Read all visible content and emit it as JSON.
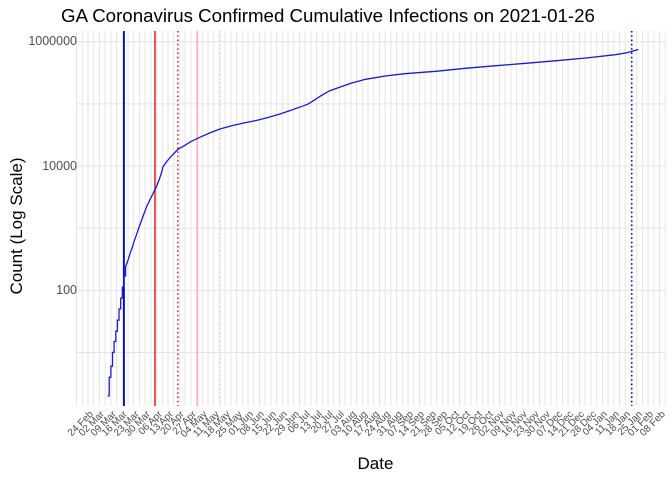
{
  "title": "GA Coronavirus Confirmed Cumulative Infections on 2021-01-26",
  "chart_data": {
    "type": "line",
    "title": "GA Coronavirus Confirmed Cumulative Infections on 2021-01-26",
    "xlabel": "Date",
    "ylabel": "Count (Log Scale)",
    "y_scale": "log10",
    "grid": true,
    "legend": "none",
    "y_ticks": [
      {
        "value": 100,
        "label": "100"
      },
      {
        "value": 10000,
        "label": "10000"
      },
      {
        "value": 1000000,
        "label": "1000000"
      }
    ],
    "y_minor_ticks": [
      10,
      1000,
      100000
    ],
    "ylim_log10": [
      0.12,
      6.17
    ],
    "x_start_date": "2020-02-24",
    "x_tick_interval_days": 7,
    "x_tick_labels": [
      "24 Feb",
      "02 Mar",
      "09 Mar",
      "16 Mar",
      "23 Mar",
      "30 Mar",
      "06 Apr",
      "13 Apr",
      "20 Apr",
      "27 Apr",
      "04 May",
      "11 May",
      "18 May",
      "25 May",
      "01 Jun",
      "08 Jun",
      "15 Jun",
      "22 Jun",
      "29 Jun",
      "06 Jul",
      "13 Jul",
      "20 Jul",
      "27 Jul",
      "03 Aug",
      "10 Aug",
      "17 Aug",
      "24 Aug",
      "31 Aug",
      "07 Sep",
      "14 Sep",
      "21 Sep",
      "28 Sep",
      "05 Oct",
      "12 Oct",
      "19 Oct",
      "26 Oct",
      "02 Nov",
      "09 Nov",
      "16 Nov",
      "23 Nov",
      "30 Nov",
      "07 Dec",
      "14 Dec",
      "21 Dec",
      "28 Dec",
      "04 Jan",
      "11 Jan",
      "18 Jan",
      "25 Jan",
      "01 Feb",
      "08 Feb"
    ],
    "series": [
      {
        "name": "cumulative-confirmed-infections",
        "color": "#1A1ACF",
        "points": [
          [
            "2020-03-07",
            2
          ],
          [
            "2020-03-08",
            2
          ],
          [
            "2020-03-08",
            4
          ],
          [
            "2020-03-09",
            4
          ],
          [
            "2020-03-09",
            6
          ],
          [
            "2020-03-10",
            6
          ],
          [
            "2020-03-10",
            10
          ],
          [
            "2020-03-11",
            10
          ],
          [
            "2020-03-11",
            15
          ],
          [
            "2020-03-12",
            15
          ],
          [
            "2020-03-12",
            22
          ],
          [
            "2020-03-13",
            22
          ],
          [
            "2020-03-13",
            33
          ],
          [
            "2020-03-14",
            33
          ],
          [
            "2020-03-14",
            50
          ],
          [
            "2020-03-15",
            50
          ],
          [
            "2020-03-15",
            75
          ],
          [
            "2020-03-16",
            75
          ],
          [
            "2020-03-16",
            112
          ],
          [
            "2020-03-17",
            112
          ],
          [
            "2020-03-17",
            170
          ],
          [
            "2020-03-18",
            170
          ],
          [
            "2020-03-18",
            240
          ],
          [
            "2020-03-19",
            280
          ],
          [
            "2020-03-20",
            335
          ],
          [
            "2020-03-21",
            413
          ],
          [
            "2020-03-22",
            480
          ],
          [
            "2020-03-23",
            590
          ],
          [
            "2020-03-24",
            700
          ],
          [
            "2020-03-25",
            830
          ],
          [
            "2020-03-26",
            990
          ],
          [
            "2020-03-27",
            1170
          ],
          [
            "2020-03-28",
            1380
          ],
          [
            "2020-03-29",
            1630
          ],
          [
            "2020-03-30",
            1920
          ],
          [
            "2020-03-31",
            2260
          ],
          [
            "2020-04-01",
            2560
          ],
          [
            "2020-04-02",
            2890
          ],
          [
            "2020-04-03",
            3260
          ],
          [
            "2020-04-04",
            3680
          ],
          [
            "2020-04-05",
            4160
          ],
          [
            "2020-04-06",
            4700
          ],
          [
            "2020-04-07",
            5500
          ],
          [
            "2020-04-08",
            6450
          ],
          [
            "2020-04-09",
            7800
          ],
          [
            "2020-04-10",
            9800
          ],
          [
            "2020-04-11",
            10700
          ],
          [
            "2020-04-12",
            11600
          ],
          [
            "2020-04-13",
            12500
          ],
          [
            "2020-04-14",
            13400
          ],
          [
            "2020-04-19",
            18500
          ],
          [
            "2020-04-23",
            21200
          ],
          [
            "2020-04-27",
            24700
          ],
          [
            "2020-05-02",
            28500
          ],
          [
            "2020-05-09",
            34500
          ],
          [
            "2020-05-15",
            39500
          ],
          [
            "2020-05-22",
            44300
          ],
          [
            "2020-05-30",
            49800
          ],
          [
            "2020-06-06",
            54000
          ],
          [
            "2020-06-13",
            60000
          ],
          [
            "2020-06-21",
            69200
          ],
          [
            "2020-06-28",
            79900
          ],
          [
            "2020-07-05",
            93000
          ],
          [
            "2020-07-08",
            100000
          ],
          [
            "2020-07-15",
            132000
          ],
          [
            "2020-07-21",
            163000
          ],
          [
            "2020-08-03",
            214000
          ],
          [
            "2020-08-12",
            248000
          ],
          [
            "2020-08-24",
            281000
          ],
          [
            "2020-09-05",
            306000
          ],
          [
            "2020-09-24",
            334000
          ],
          [
            "2020-10-12",
            373000
          ],
          [
            "2020-10-31",
            411000
          ],
          [
            "2020-11-18",
            449000
          ],
          [
            "2020-12-07",
            495000
          ],
          [
            "2020-12-25",
            547000
          ],
          [
            "2021-01-12",
            618000
          ],
          [
            "2021-01-19",
            662000
          ],
          [
            "2021-01-26",
            749000
          ]
        ]
      }
    ],
    "vlines": [
      {
        "date": "2020-03-17",
        "color": "#0000BF",
        "style": "solid",
        "width": 1.8
      },
      {
        "date": "2020-04-05",
        "color": "#E01111",
        "style": "solid",
        "width": 1.4
      },
      {
        "date": "2020-04-19",
        "color": "#DD1111",
        "style": "dotted",
        "width": 1.4
      },
      {
        "date": "2020-05-01",
        "color": "#FFB0BE",
        "style": "solid",
        "width": 1.6
      },
      {
        "date": "2020-05-15",
        "color": "#FFC9D2",
        "style": "dotted",
        "width": 1.4
      },
      {
        "date": "2021-01-22",
        "color": "#0000A0",
        "style": "dotted",
        "width": 1.5
      }
    ]
  }
}
